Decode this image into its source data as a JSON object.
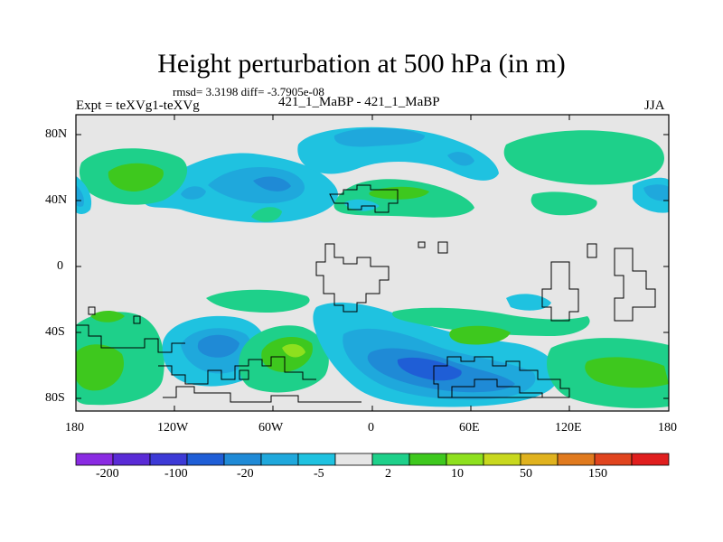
{
  "header": {
    "title": "Height perturbation at 500 hPa (in m)",
    "stats": "rmsd= 3.3198 diff= -3.7905e-08",
    "expt": "Expt = teXVg1-teXVg",
    "runs": "421_1_MaBP - 421_1_MaBP",
    "season": "JJA"
  },
  "axes": {
    "lat_ticks": [
      "80N",
      "40N",
      "0",
      "40S",
      "80S"
    ],
    "lon_ticks": [
      "180",
      "120W",
      "60W",
      "0",
      "60E",
      "120E",
      "180"
    ]
  },
  "colorbar": {
    "colors": [
      "#8a2be2",
      "#5a2bd6",
      "#3d3ad6",
      "#1f5ed6",
      "#1f8ad6",
      "#1fa8dc",
      "#1fc2e0",
      "#e6e6e6",
      "#1ed08a",
      "#3ec81e",
      "#8ee01e",
      "#c8d81e",
      "#e0b21e",
      "#e07a1e",
      "#e0441e",
      "#e01e1e"
    ],
    "labels": [
      "-200",
      "-100",
      "-20",
      "-5",
      "2",
      "10",
      "50",
      "150"
    ]
  }
}
